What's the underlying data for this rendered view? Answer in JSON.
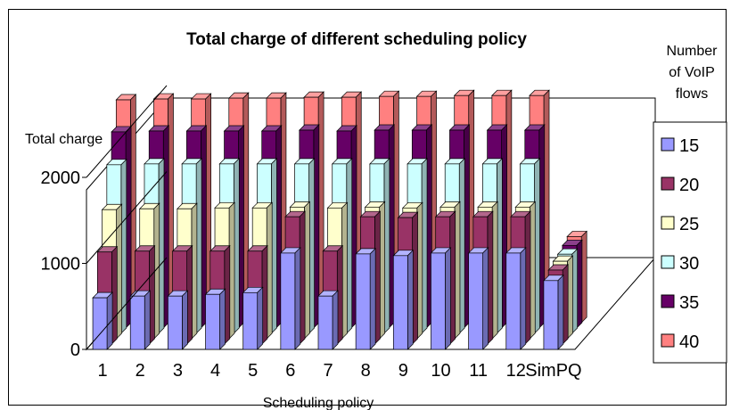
{
  "chart_data": {
    "type": "bar",
    "title": "Total charge of different scheduling policy",
    "xlabel": "Scheduling policy",
    "ylabel": "Total charge",
    "ylim": [
      0,
      2000
    ],
    "yticks": [
      "0",
      "1000",
      "2000"
    ],
    "categories": [
      "1",
      "2",
      "3",
      "4",
      "5",
      "6",
      "7",
      "8",
      "9",
      "10",
      "11",
      "12",
      "SimPQ"
    ],
    "legend": {
      "title": "Number of VoIP flows",
      "position": "right"
    },
    "series": [
      {
        "name": "15",
        "color": "#9999ff",
        "values": [
          600,
          620,
          620,
          640,
          660,
          1120,
          620,
          1110,
          1090,
          1120,
          1120,
          1120,
          800
        ]
      },
      {
        "name": "20",
        "color": "#993366",
        "values": [
          1070,
          1080,
          1080,
          1080,
          1080,
          1480,
          1080,
          1480,
          1470,
          1480,
          1480,
          1480,
          860
        ]
      },
      {
        "name": "25",
        "color": "#ffffcc",
        "values": [
          1500,
          1510,
          1510,
          1520,
          1520,
          1530,
          1520,
          1530,
          1520,
          1530,
          1530,
          1530,
          900
        ]
      },
      {
        "name": "30",
        "color": "#ccffff",
        "values": [
          1960,
          1970,
          1970,
          1970,
          1970,
          1970,
          1970,
          1970,
          1970,
          1970,
          1970,
          1970,
          920
        ]
      },
      {
        "name": "35",
        "color": "#660066",
        "values": [
          2280,
          2290,
          2290,
          2290,
          2290,
          2300,
          2290,
          2300,
          2300,
          2300,
          2300,
          2300,
          960
        ]
      },
      {
        "name": "40",
        "color": "#ff8080",
        "values": [
          2590,
          2600,
          2600,
          2610,
          2610,
          2620,
          2620,
          2630,
          2630,
          2640,
          2640,
          2640,
          1000
        ]
      }
    ]
  }
}
